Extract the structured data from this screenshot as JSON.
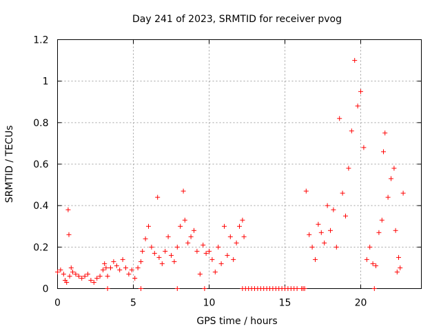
{
  "chart_data": {
    "type": "scatter",
    "title": "Day 241 of 2023, SRMTID for receiver pvog",
    "xlabel": "GPS time / hours",
    "ylabel": "SRMTID / TECUs",
    "xlim": [
      0,
      24
    ],
    "ylim": [
      0,
      1.2
    ],
    "xticks": [
      0,
      5,
      10,
      15,
      20
    ],
    "yticks": [
      0,
      0.2,
      0.4,
      0.6,
      0.8,
      1,
      1.2
    ],
    "ytick_labels": [
      "0",
      "0.2",
      "0.4",
      "0.6",
      "0.8",
      "1",
      "1.2"
    ],
    "grid": true,
    "marker": "+",
    "color": "#ff0000",
    "series": [
      {
        "name": "SRMTID",
        "x": [
          0.0,
          0.2,
          0.4,
          0.5,
          0.6,
          0.7,
          0.75,
          0.8,
          0.9,
          1.0,
          1.2,
          1.4,
          1.6,
          1.8,
          2.0,
          2.2,
          2.4,
          2.6,
          2.8,
          3.0,
          3.1,
          3.2,
          3.3,
          3.5,
          3.7,
          3.9,
          4.1,
          4.3,
          4.5,
          4.7,
          4.9,
          5.1,
          5.3,
          5.5,
          5.6,
          5.8,
          6.0,
          6.2,
          6.4,
          6.6,
          6.7,
          6.9,
          7.1,
          7.3,
          7.5,
          7.7,
          7.9,
          8.1,
          8.3,
          8.4,
          8.6,
          8.8,
          9.0,
          9.2,
          9.4,
          9.6,
          9.8,
          10.0,
          10.2,
          10.4,
          10.6,
          10.8,
          11.0,
          11.2,
          11.4,
          11.6,
          11.8,
          12.0,
          12.2,
          12.3,
          16.4,
          16.6,
          16.8,
          17.0,
          17.2,
          17.4,
          17.6,
          17.8,
          18.0,
          18.2,
          18.4,
          18.6,
          18.8,
          19.0,
          19.2,
          19.4,
          19.6,
          19.8,
          20.0,
          20.2,
          20.4,
          20.6,
          20.8,
          21.0,
          21.2,
          21.4,
          21.5,
          21.6,
          21.8,
          22.0,
          22.2,
          22.3,
          22.4,
          22.5,
          22.6,
          22.8
        ],
        "y": [
          0.08,
          0.09,
          0.07,
          0.04,
          0.03,
          0.38,
          0.26,
          0.06,
          0.1,
          0.08,
          0.07,
          0.06,
          0.05,
          0.06,
          0.07,
          0.04,
          0.03,
          0.05,
          0.06,
          0.09,
          0.12,
          0.1,
          0.06,
          0.1,
          0.13,
          0.11,
          0.09,
          0.14,
          0.1,
          0.07,
          0.09,
          0.05,
          0.1,
          0.13,
          0.18,
          0.24,
          0.3,
          0.2,
          0.17,
          0.44,
          0.15,
          0.12,
          0.18,
          0.25,
          0.16,
          0.13,
          0.2,
          0.3,
          0.47,
          0.33,
          0.22,
          0.25,
          0.28,
          0.18,
          0.07,
          0.21,
          0.17,
          0.18,
          0.14,
          0.08,
          0.2,
          0.12,
          0.3,
          0.16,
          0.25,
          0.14,
          0.22,
          0.3,
          0.33,
          0.25,
          0.47,
          0.26,
          0.2,
          0.14,
          0.31,
          0.27,
          0.22,
          0.4,
          0.28,
          0.38,
          0.2,
          0.82,
          0.46,
          0.35,
          0.58,
          0.76,
          1.1,
          0.88,
          0.95,
          0.68,
          0.14,
          0.2,
          0.12,
          0.11,
          0.27,
          0.33,
          0.66,
          0.75,
          0.44,
          0.53,
          0.58,
          0.28,
          0.08,
          0.15,
          0.1,
          0.46
        ],
        "gaps_x": [
          3.3,
          5.5,
          7.9,
          9.7,
          12.2,
          12.4,
          12.6,
          12.8,
          13.0,
          13.2,
          13.4,
          13.6,
          13.8,
          14.0,
          14.2,
          14.4,
          14.6,
          14.8,
          15.0,
          15.2,
          15.4,
          15.6,
          15.8,
          16.1,
          16.2,
          16.3,
          20.9
        ],
        "gaps_y": 0
      }
    ]
  }
}
